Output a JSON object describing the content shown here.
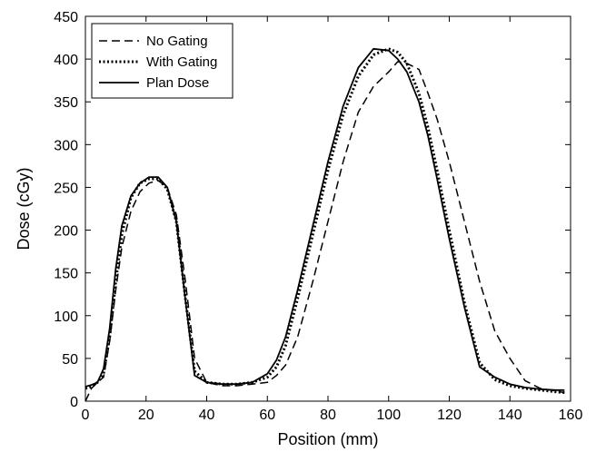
{
  "chart_data": {
    "type": "line",
    "title": "",
    "xlabel": "Position (mm)",
    "ylabel": "Dose (cGy)",
    "xlim": [
      0,
      160
    ],
    "ylim": [
      0,
      450
    ],
    "xticks": [
      0,
      20,
      40,
      60,
      80,
      100,
      120,
      140,
      160
    ],
    "yticks": [
      0,
      50,
      100,
      150,
      200,
      250,
      300,
      350,
      400,
      450
    ],
    "grid": false,
    "legend": "top-left",
    "series": [
      {
        "name": "No Gating",
        "style": "dashed",
        "color": "#000000",
        "x": [
          0,
          2,
          4,
          6,
          8,
          10,
          12,
          15,
          18,
          21,
          24,
          27,
          30,
          33,
          36,
          40,
          45,
          50,
          55,
          60,
          63,
          66,
          70,
          75,
          80,
          85,
          90,
          95,
          100,
          103,
          106,
          110,
          113,
          116,
          120,
          125,
          130,
          135,
          140,
          145,
          150,
          155,
          158
        ],
        "y": [
          0,
          15,
          22,
          28,
          70,
          130,
          180,
          222,
          245,
          255,
          258,
          250,
          218,
          140,
          50,
          22,
          18,
          18,
          20,
          22,
          30,
          42,
          75,
          140,
          210,
          280,
          338,
          368,
          385,
          397,
          395,
          388,
          360,
          330,
          280,
          210,
          140,
          82,
          50,
          24,
          15,
          12,
          10
        ]
      },
      {
        "name": "With Gating",
        "style": "dotted",
        "color": "#000000",
        "x": [
          0,
          2,
          4,
          6,
          8,
          10,
          12,
          15,
          18,
          21,
          24,
          27,
          30,
          33,
          36,
          40,
          45,
          50,
          55,
          60,
          63,
          66,
          70,
          75,
          80,
          85,
          90,
          95,
          100,
          103,
          106,
          110,
          113,
          116,
          120,
          125,
          130,
          135,
          140,
          145,
          150,
          155,
          158
        ],
        "y": [
          15,
          17,
          22,
          32,
          75,
          140,
          195,
          238,
          255,
          260,
          260,
          248,
          210,
          120,
          35,
          22,
          20,
          20,
          22,
          28,
          40,
          65,
          120,
          195,
          270,
          335,
          380,
          405,
          412,
          408,
          395,
          360,
          320,
          270,
          200,
          115,
          45,
          25,
          18,
          15,
          13,
          11,
          10
        ]
      },
      {
        "name": "Plan Dose",
        "style": "solid",
        "color": "#000000",
        "x": [
          0,
          2,
          4,
          6,
          8,
          10,
          12,
          15,
          18,
          21,
          24,
          27,
          30,
          33,
          36,
          40,
          45,
          50,
          55,
          60,
          63,
          66,
          70,
          75,
          80,
          85,
          90,
          95,
          100,
          103,
          106,
          110,
          113,
          116,
          120,
          125,
          130,
          135,
          140,
          145,
          150,
          155,
          158
        ],
        "y": [
          17,
          19,
          22,
          38,
          85,
          155,
          205,
          240,
          255,
          262,
          262,
          250,
          210,
          118,
          30,
          22,
          20,
          20,
          22,
          32,
          48,
          75,
          130,
          205,
          280,
          345,
          390,
          412,
          410,
          400,
          385,
          350,
          310,
          260,
          190,
          110,
          40,
          28,
          20,
          16,
          14,
          13,
          13
        ]
      }
    ]
  }
}
